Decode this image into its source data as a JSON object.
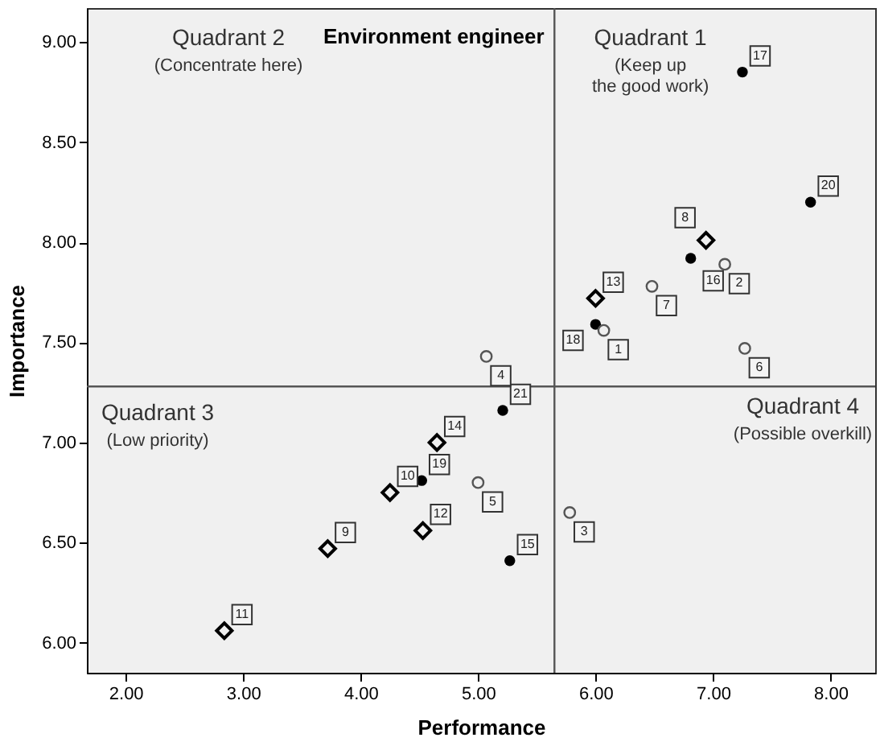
{
  "chart_data": {
    "type": "scatter",
    "title": "Environment engineer",
    "xlabel": "Performance",
    "ylabel": "Importance",
    "xlim": [
      1.67,
      8.38
    ],
    "ylim": [
      5.85,
      9.17
    ],
    "xticks": [
      {
        "value": 2,
        "label": "2.00"
      },
      {
        "value": 3,
        "label": "3.00"
      },
      {
        "value": 4,
        "label": "4.00"
      },
      {
        "value": 5,
        "label": "5.00"
      },
      {
        "value": 6,
        "label": "6.00"
      },
      {
        "value": 7,
        "label": "7.00"
      },
      {
        "value": 8,
        "label": "8.00"
      }
    ],
    "yticks": [
      {
        "value": 6,
        "label": "6.00"
      },
      {
        "value": 6.5,
        "label": "6.50"
      },
      {
        "value": 7,
        "label": "7.00"
      },
      {
        "value": 7.5,
        "label": "7.50"
      },
      {
        "value": 8,
        "label": "8.00"
      },
      {
        "value": 8.5,
        "label": "8.50"
      },
      {
        "value": 9,
        "label": "9.00"
      }
    ],
    "grid": false,
    "series": [
      {
        "color": "#000000",
        "marker": "circle",
        "x": [
          7.25,
          7.83,
          6.81,
          6.0,
          5.21,
          4.52,
          5.27
        ],
        "values": [
          8.85,
          8.2,
          7.92,
          7.59,
          7.16,
          6.81,
          6.41
        ]
      },
      {
        "color": "#555555",
        "marker": "circle",
        "x": [
          7.1,
          6.48,
          6.07,
          7.27,
          5.07,
          5.0,
          5.78
        ],
        "values": [
          7.89,
          7.78,
          7.56,
          7.47,
          7.43,
          6.8,
          6.65
        ]
      },
      {
        "color": "#000000",
        "marker": "diamond",
        "x": [
          6.94,
          6.0,
          4.65,
          4.25,
          4.53,
          3.72,
          2.84
        ],
        "values": [
          8.01,
          7.72,
          7.0,
          6.75,
          6.56,
          6.47,
          6.06
        ]
      }
    ],
    "ref_lines": [
      {
        "axis": "x",
        "value": 5.65,
        "color": "#555555"
      },
      {
        "axis": "y",
        "value": 7.28,
        "color": "#555555"
      }
    ],
    "annotations": [
      "Quadrant 2\n(Concentrate here)",
      "Quadrant 1\n(Keep up\nthe good work)",
      "Quadrant 3\n(Low priority)",
      "Quadrant 4\n(Possible overkill)",
      {
        "text": "17",
        "x": 7.25,
        "y": 8.85
      },
      {
        "text": "20",
        "x": 7.83,
        "y": 8.2
      },
      {
        "text": "16",
        "x": 6.81,
        "y": 7.92
      },
      {
        "text": "18",
        "x": 6.0,
        "y": 7.59
      },
      {
        "text": "21",
        "x": 5.21,
        "y": 7.16
      },
      {
        "text": "19",
        "x": 4.52,
        "y": 6.81
      },
      {
        "text": "15",
        "x": 5.27,
        "y": 6.41
      },
      {
        "text": "2",
        "x": 7.1,
        "y": 7.89
      },
      {
        "text": "7",
        "x": 6.48,
        "y": 7.78
      },
      {
        "text": "1",
        "x": 6.07,
        "y": 7.56
      },
      {
        "text": "6",
        "x": 7.27,
        "y": 7.47
      },
      {
        "text": "4",
        "x": 5.07,
        "y": 7.43
      },
      {
        "text": "5",
        "x": 5.0,
        "y": 6.8
      },
      {
        "text": "3",
        "x": 5.78,
        "y": 6.65
      },
      {
        "text": "8",
        "x": 6.94,
        "y": 8.01
      },
      {
        "text": "13",
        "x": 6.0,
        "y": 7.72
      },
      {
        "text": "14",
        "x": 4.65,
        "y": 7.0
      },
      {
        "text": "10",
        "x": 4.25,
        "y": 6.75
      },
      {
        "text": "12",
        "x": 4.53,
        "y": 6.56
      },
      {
        "text": "9",
        "x": 3.72,
        "y": 6.47
      },
      {
        "text": "11",
        "x": 2.84,
        "y": 6.06
      }
    ]
  }
}
